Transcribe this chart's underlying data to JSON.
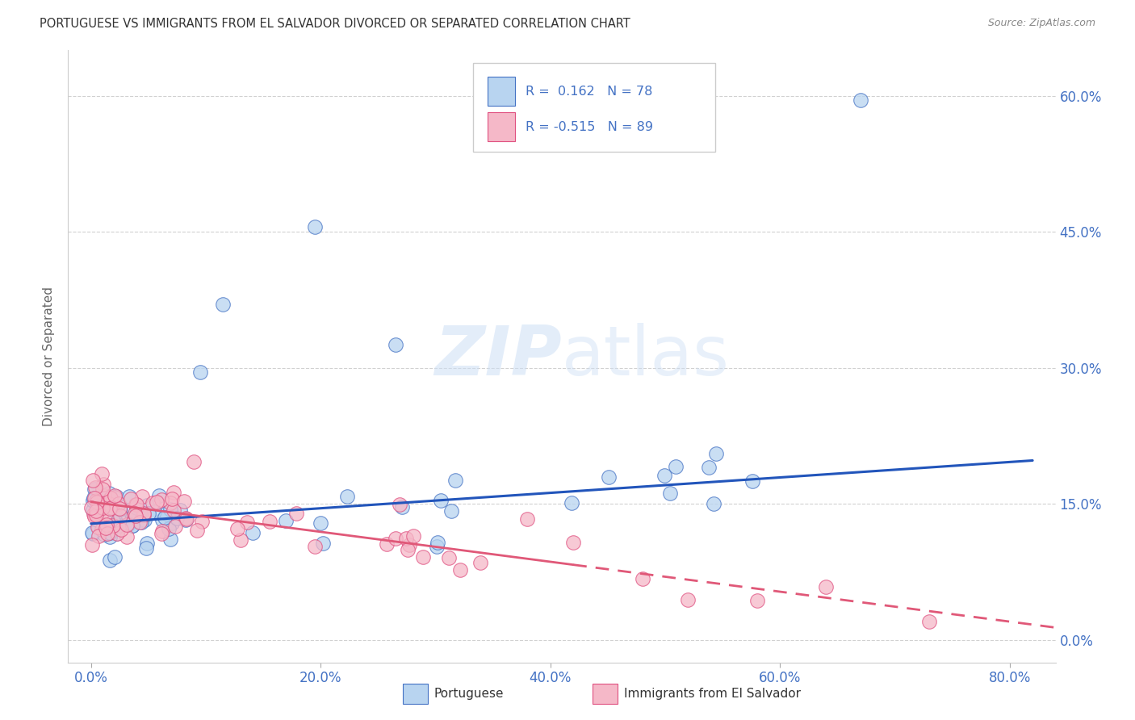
{
  "title": "PORTUGUESE VS IMMIGRANTS FROM EL SALVADOR DIVORCED OR SEPARATED CORRELATION CHART",
  "source": "Source: ZipAtlas.com",
  "ylabel": "Divorced or Separated",
  "x_tick_vals": [
    0.0,
    0.2,
    0.4,
    0.6,
    0.8
  ],
  "x_tick_labels": [
    "0.0%",
    "20.0%",
    "40.0%",
    "60.0%",
    "80.0%"
  ],
  "y_tick_vals": [
    0.0,
    0.15,
    0.3,
    0.45,
    0.6
  ],
  "y_tick_labels": [
    "0.0%",
    "15.0%",
    "30.0%",
    "45.0%",
    "60.0%"
  ],
  "xlim": [
    -0.02,
    0.84
  ],
  "ylim": [
    -0.025,
    0.65
  ],
  "portuguese_fill": "#b8d4f0",
  "portuguese_edge": "#4472c4",
  "salvador_fill": "#f5b8c8",
  "salvador_edge": "#e05080",
  "blue_line_color": "#2255bb",
  "pink_line_color": "#e05878",
  "portuguese_R": 0.162,
  "portuguese_N": 78,
  "salvador_R": -0.515,
  "salvador_N": 89,
  "legend_label_portuguese": "Portuguese",
  "legend_label_salvador": "Immigrants from El Salvador",
  "watermark_zip": "ZIP",
  "watermark_atlas": "atlas",
  "background_color": "#ffffff",
  "grid_color": "#cccccc",
  "tick_color": "#4472c4",
  "title_color": "#333333",
  "source_color": "#888888",
  "ylabel_color": "#666666"
}
